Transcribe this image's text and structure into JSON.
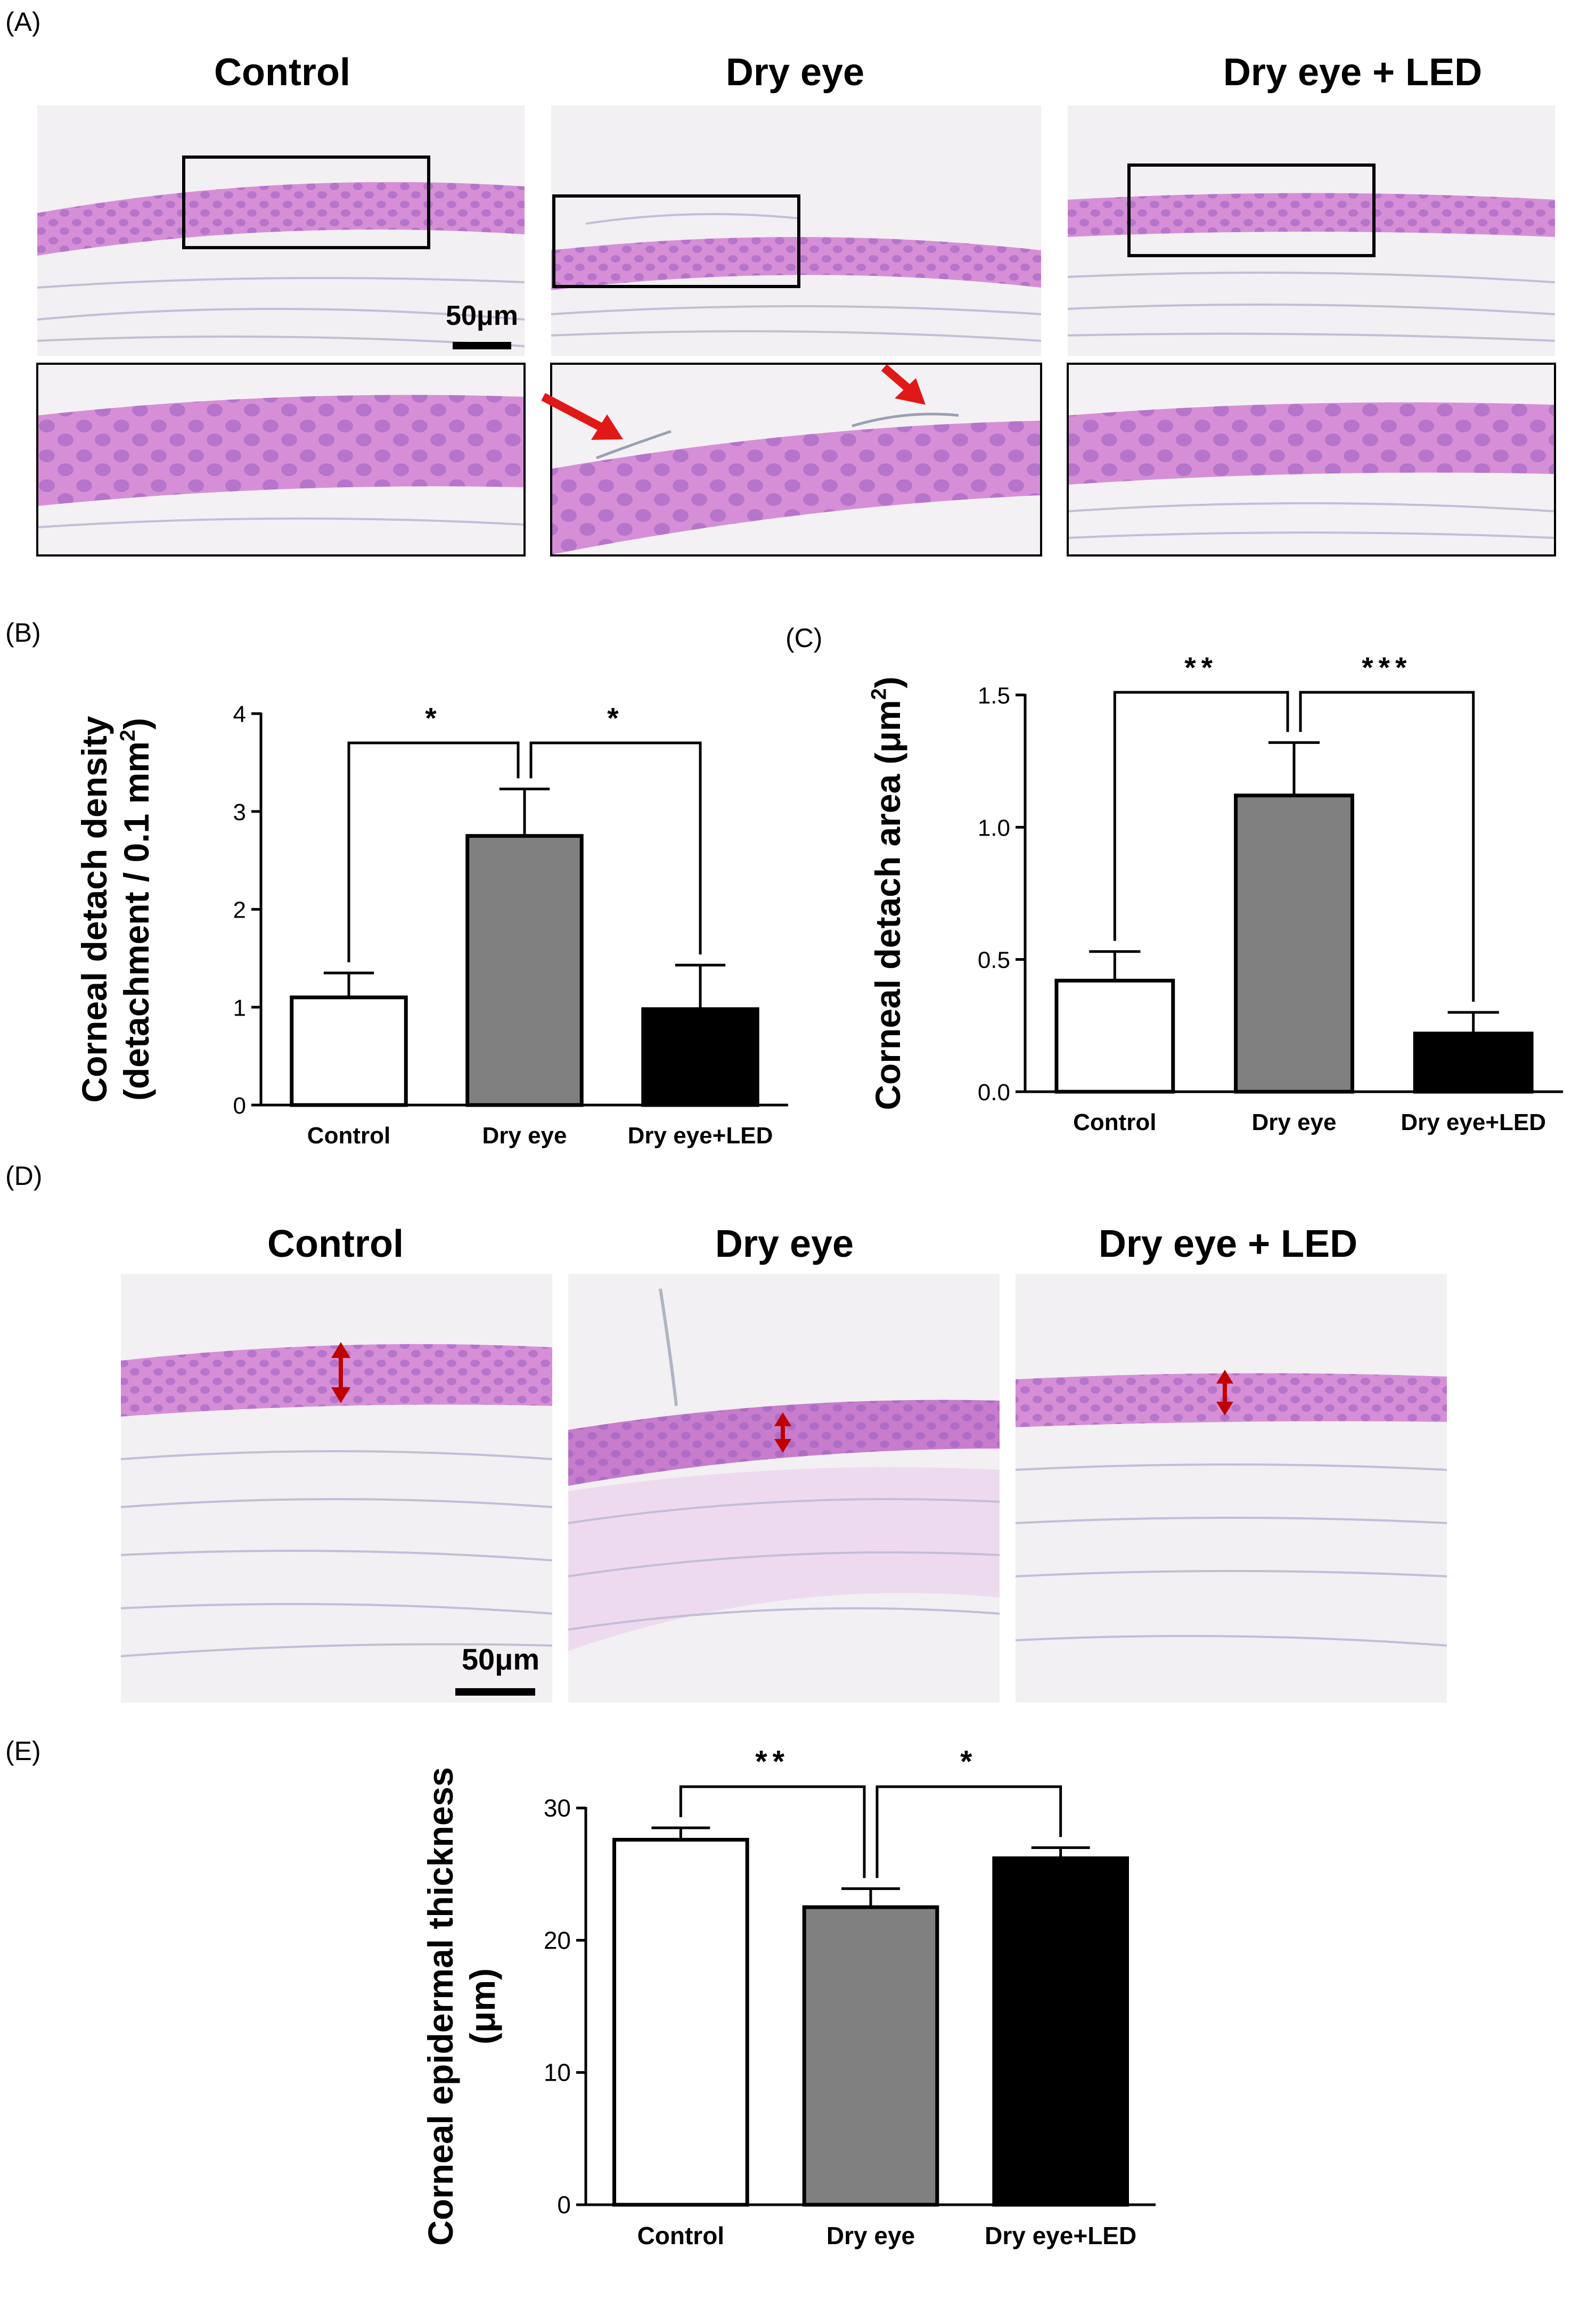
{
  "panel_labels": {
    "a": "(A)",
    "b": "(B)",
    "c": "(C)",
    "d": "(D)",
    "e": "(E)"
  },
  "groups": [
    "Control",
    "Dry eye",
    "Dry eye + LED"
  ],
  "scale_bar_label": "50μm",
  "colors": {
    "control": "#ffffff",
    "dry_eye": "#808080",
    "dry_eye_led": "#000000",
    "arrow": "#e01818",
    "tissue": "#d68fd6",
    "nucleus": "#9a5fc0"
  },
  "chart_data": [
    {
      "type": "bar",
      "panel": "(B)",
      "categories": [
        "Control",
        "Dry eye",
        "Dry eye+LED"
      ],
      "values": [
        1.1,
        2.75,
        0.98
      ],
      "errors": [
        0.25,
        0.48,
        0.45
      ],
      "ylabel": "Corneal detach density",
      "ylabel2": "(detachment / 0.1 mm",
      "ylabel2_sup": "2",
      "ylabel2_end": ")",
      "ylim": [
        0,
        4
      ],
      "yticks": [
        "0",
        "1",
        "2",
        "3",
        "4"
      ],
      "significance": [
        {
          "from": 0,
          "to": 1,
          "label": "*"
        },
        {
          "from": 1,
          "to": 2,
          "label": "*"
        }
      ]
    },
    {
      "type": "bar",
      "panel": "(C)",
      "categories": [
        "Control",
        "Dry eye",
        "Dry eye+LED"
      ],
      "values": [
        0.42,
        1.12,
        0.22
      ],
      "errors": [
        0.11,
        0.2,
        0.08
      ],
      "ylabel": "Corneal detach area (μm",
      "ylabel_sup": "2",
      "ylabel_end": ")",
      "ylim": [
        0,
        1.5
      ],
      "yticks": [
        "0.0",
        "0.5",
        "1.0",
        "1.5"
      ],
      "significance": [
        {
          "from": 0,
          "to": 1,
          "label": "**"
        },
        {
          "from": 1,
          "to": 2,
          "label": "***"
        }
      ]
    },
    {
      "type": "bar",
      "panel": "(E)",
      "categories": [
        "Control",
        "Dry eye",
        "Dry eye+LED"
      ],
      "values": [
        27.6,
        22.5,
        26.2
      ],
      "errors": [
        0.9,
        1.4,
        0.8
      ],
      "ylabel": "Corneal epidermal thickness",
      "ylabel2": "(μm)",
      "ylim": [
        0,
        30
      ],
      "yticks": [
        "0",
        "10",
        "20",
        "30"
      ],
      "significance": [
        {
          "from": 0,
          "to": 1,
          "label": "**"
        },
        {
          "from": 1,
          "to": 2,
          "label": "*"
        }
      ]
    }
  ]
}
